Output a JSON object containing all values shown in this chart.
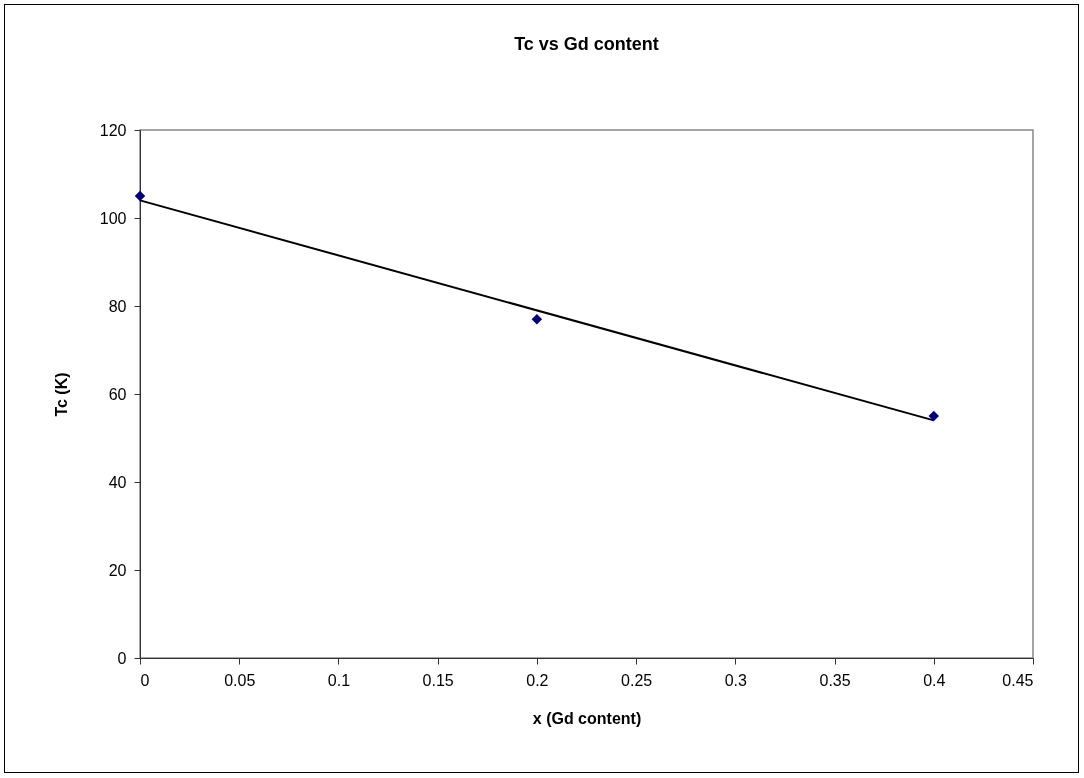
{
  "chart_data": {
    "type": "scatter",
    "title": "Tc vs Gd content",
    "xlabel": "x (Gd content)",
    "ylabel": "Tc (K)",
    "x": [
      0,
      0.2,
      0.4
    ],
    "series": [
      {
        "color": "#000080",
        "values": [
          105,
          77,
          55
        ]
      },
      {
        "type": "line",
        "marker": "none",
        "color": "#000000",
        "x": [
          0,
          0.4
        ],
        "values": [
          104,
          54
        ]
      }
    ],
    "marker": "diamond",
    "line_style": "solid",
    "xlim": [
      0,
      0.45
    ],
    "xticks": [
      0,
      0.05,
      0.1,
      0.15,
      0.2,
      0.25,
      0.3,
      0.35,
      0.4,
      0.45
    ],
    "ylim": [
      0,
      120
    ],
    "yticks": [
      0,
      20,
      40,
      60,
      80,
      100,
      120
    ],
    "grid": false
  }
}
